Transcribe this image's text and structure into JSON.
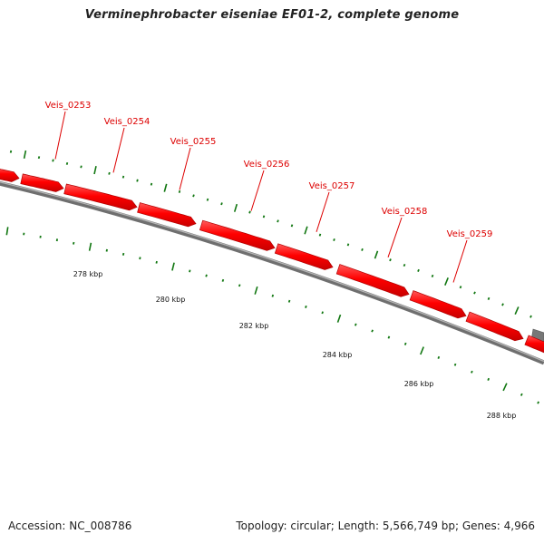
{
  "title": "Verminephrobacter eiseniae EF01-2, complete genome",
  "footer": {
    "accession": "Accession: NC_008786",
    "summary": "Topology: circular; Length: 5,566,749 bp; Genes: 4,966"
  },
  "colors": {
    "gene_fill": "#ff0000",
    "gene_edge": "#b00000",
    "gene_label": "#dd0000",
    "backbone": "#888888",
    "backbone_dark": "#555555",
    "tick": "#117711",
    "ruler_dot": "#117711"
  },
  "genes": [
    {
      "label": "Veis_0253"
    },
    {
      "label": "Veis_0254"
    },
    {
      "label": "Veis_0255"
    },
    {
      "label": "Veis_0256"
    },
    {
      "label": "Veis_0257"
    },
    {
      "label": "Veis_0258"
    },
    {
      "label": "Veis_0259"
    }
  ],
  "ruler": {
    "tick_labels": [
      "278 kbp",
      "280 kbp",
      "282 kbp",
      "284 kbp",
      "286 kbp",
      "288 kbp"
    ]
  }
}
